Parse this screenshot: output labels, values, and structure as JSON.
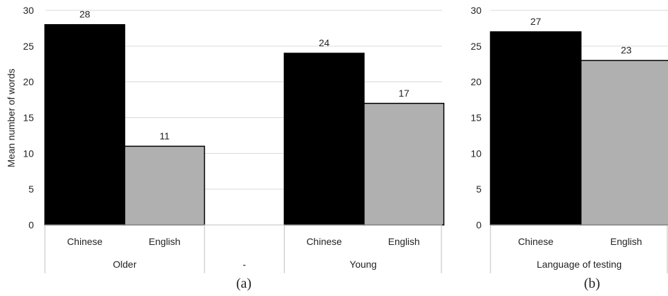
{
  "chart_data": [
    {
      "type": "bar",
      "panel_label": "(a)",
      "ylabel": "Mean number of words",
      "ylim": [
        0,
        30
      ],
      "yticks": [
        0,
        5,
        10,
        15,
        20,
        25,
        30
      ],
      "grid": true,
      "groups": [
        {
          "name": "Older",
          "bars": [
            {
              "category": "Chinese",
              "value": 28
            },
            {
              "category": "English",
              "value": 11
            }
          ]
        },
        {
          "name": "-",
          "bars": []
        },
        {
          "name": "Young",
          "bars": [
            {
              "category": "Chinese",
              "value": 24
            },
            {
              "category": "English",
              "value": 17
            }
          ]
        }
      ],
      "colors": {
        "Chinese": "#000000",
        "English": "#b0b0b0"
      }
    },
    {
      "type": "bar",
      "panel_label": "(b)",
      "ylabel": "",
      "ylim": [
        0,
        30
      ],
      "yticks": [
        0,
        5,
        10,
        15,
        20,
        25,
        30
      ],
      "grid": true,
      "groups": [
        {
          "name": "Language of testing",
          "bars": [
            {
              "category": "Chinese",
              "value": 27
            },
            {
              "category": "English",
              "value": 23
            }
          ]
        }
      ],
      "colors": {
        "Chinese": "#000000",
        "English": "#b0b0b0"
      }
    }
  ]
}
